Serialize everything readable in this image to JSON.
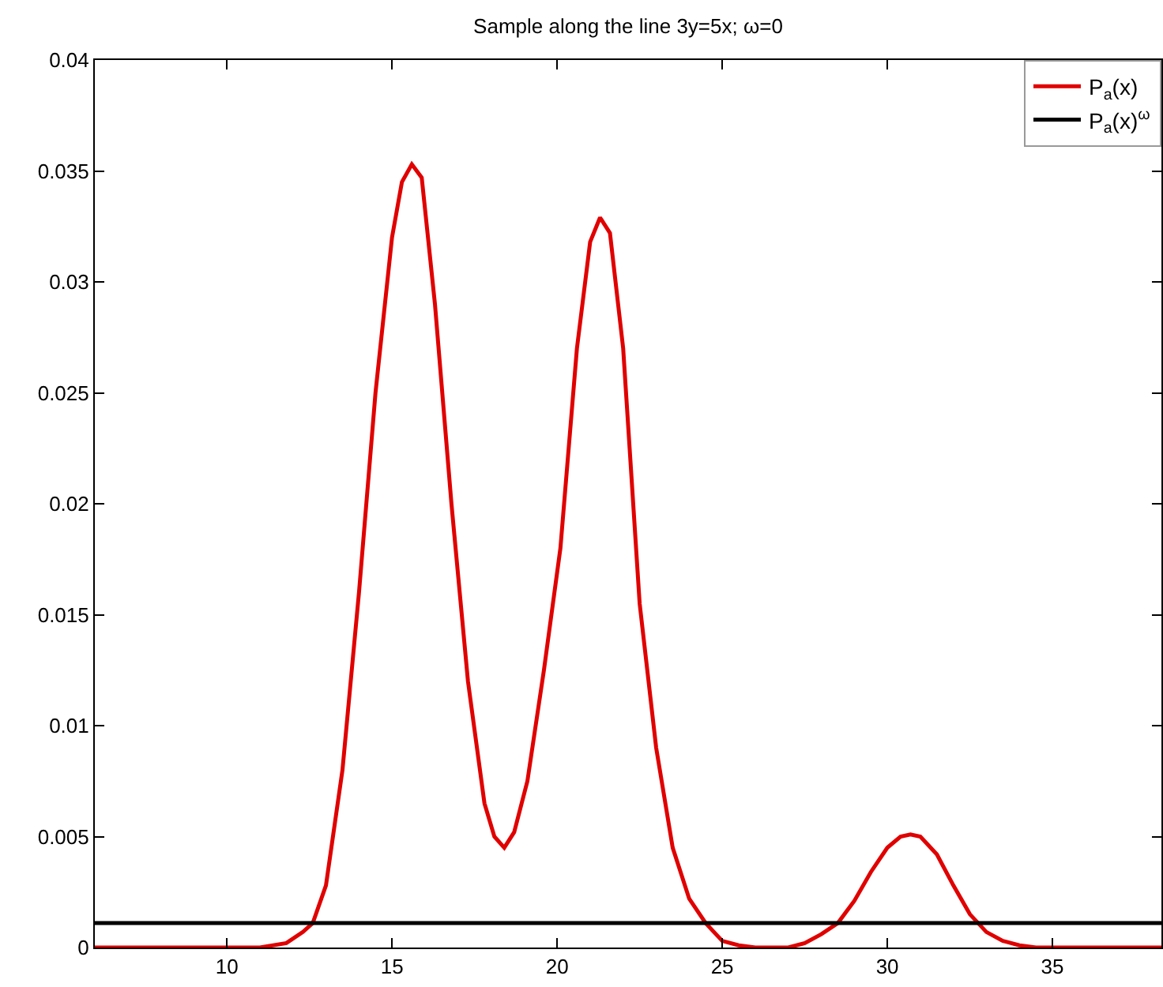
{
  "chart_data": {
    "type": "line",
    "title": "Sample along the line 3y=5x; ω=0",
    "xlim": [
      6,
      38.3
    ],
    "xticks": [
      10,
      15,
      20,
      25,
      30,
      35
    ],
    "ylim": [
      0,
      0.04
    ],
    "yticks": [
      0,
      0.005,
      0.01,
      0.015,
      0.02,
      0.025,
      0.03,
      0.035,
      0.04
    ],
    "legend": "top right",
    "marker": "none",
    "line_style": "solid",
    "series": [
      {
        "name": "P$_{a}$(x)",
        "color": "#e00000",
        "x": [
          6,
          11,
          11.8,
          12.3,
          12.6,
          13,
          13.5,
          14,
          14.5,
          15,
          15.3,
          15.6,
          15.9,
          16.3,
          16.8,
          17.3,
          17.8,
          18.1,
          18.4,
          18.7,
          19.1,
          19.6,
          20.1,
          20.6,
          21.0,
          21.3,
          21.6,
          22,
          22.5,
          23,
          23.5,
          24,
          24.5,
          25,
          25.5,
          26,
          27,
          27.5,
          28,
          28.5,
          29,
          29.5,
          30,
          30.4,
          30.7,
          31,
          31.5,
          32,
          32.5,
          33,
          33.5,
          34,
          34.5,
          38.3
        ],
        "values": [
          0,
          0,
          0.0002,
          0.0007,
          0.0011,
          0.0028,
          0.008,
          0.016,
          0.025,
          0.032,
          0.0345,
          0.0353,
          0.0347,
          0.029,
          0.02,
          0.012,
          0.0065,
          0.005,
          0.0045,
          0.0052,
          0.0075,
          0.0125,
          0.018,
          0.027,
          0.0318,
          0.0329,
          0.0322,
          0.027,
          0.0155,
          0.009,
          0.0045,
          0.0022,
          0.0011,
          0.0003,
          0.0001,
          0,
          0,
          0.0002,
          0.0006,
          0.0011,
          0.0021,
          0.0034,
          0.0045,
          0.005,
          0.0051,
          0.005,
          0.0042,
          0.0028,
          0.0015,
          0.0007,
          0.0003,
          0.0001,
          0,
          0
        ]
      },
      {
        "name": "P$_{a}$(x)$^{ω}$",
        "color": "#000000",
        "x": [
          6,
          38.3
        ],
        "values": [
          0.0011,
          0.0011
        ]
      }
    ]
  }
}
